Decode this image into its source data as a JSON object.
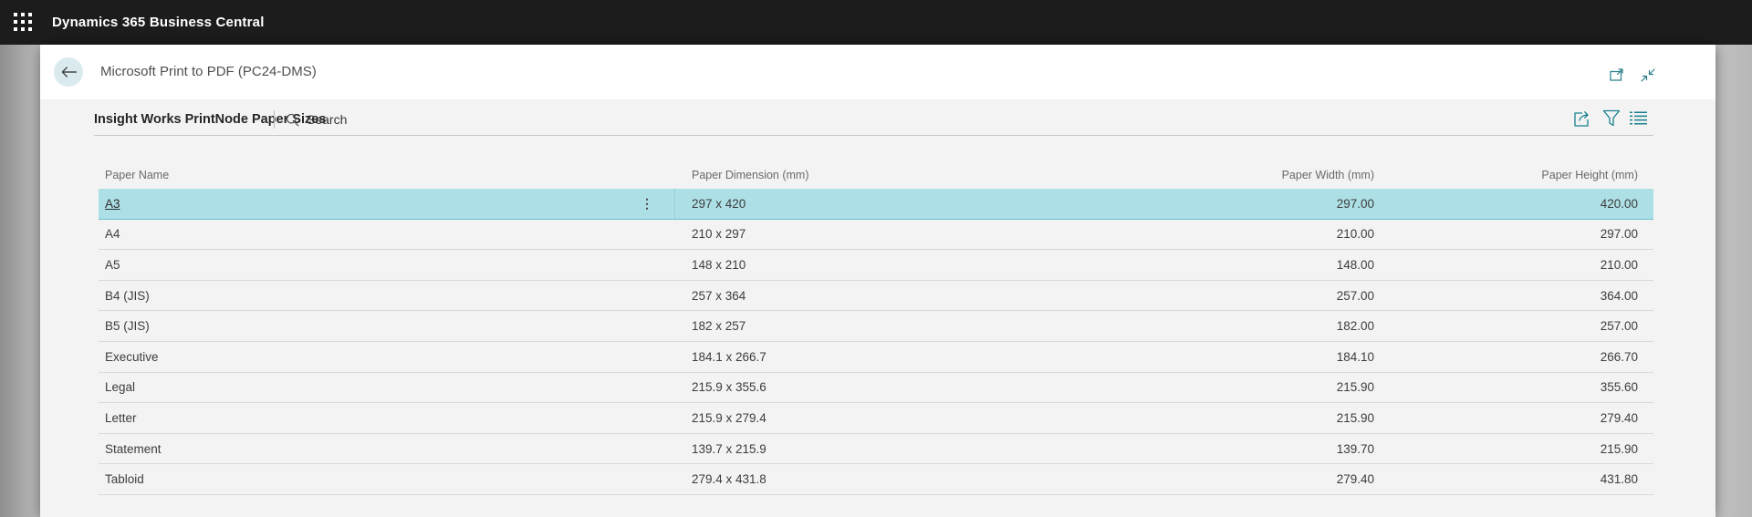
{
  "app": {
    "title": "Dynamics 365 Business Central"
  },
  "page": {
    "title": "Microsoft Print to PDF (PC24-DMS)",
    "list_caption": "Insight Works PrintNode Paper Sizes",
    "search_label": "Search"
  },
  "icons": {
    "waffle": "app-launcher grid of 9 dots",
    "back_arrow": "left arrow in circle",
    "popout": "open-in-new-window",
    "collapse": "collapse-to-normal-view arrows",
    "share": "share arrow out of box",
    "filter": "funnel",
    "show_list": "list lines",
    "search": "magnifier",
    "row_ellipsis": "⋮"
  },
  "colors": {
    "topbar": "#1c1c1c",
    "accent_teal": "#19808e",
    "selected_row": "#ade0e6",
    "panel": "#f3f3f3",
    "back_circle": "#d9ebee"
  },
  "table": {
    "columns": [
      {
        "label": "Paper Name",
        "align": "left"
      },
      {
        "label": "Paper Dimension (mm)",
        "align": "left"
      },
      {
        "label": "Paper Width (mm)",
        "align": "right"
      },
      {
        "label": "Paper Height (mm)",
        "align": "right"
      }
    ],
    "rows": [
      {
        "name": "A3",
        "dimension": "297 x 420",
        "width": "297.00",
        "height": "420.00",
        "selected": true
      },
      {
        "name": "A4",
        "dimension": "210 x 297",
        "width": "210.00",
        "height": "297.00",
        "selected": false
      },
      {
        "name": "A5",
        "dimension": "148 x 210",
        "width": "148.00",
        "height": "210.00",
        "selected": false
      },
      {
        "name": "B4 (JIS)",
        "dimension": "257 x 364",
        "width": "257.00",
        "height": "364.00",
        "selected": false
      },
      {
        "name": "B5 (JIS)",
        "dimension": "182 x 257",
        "width": "182.00",
        "height": "257.00",
        "selected": false
      },
      {
        "name": "Executive",
        "dimension": "184.1 x 266.7",
        "width": "184.10",
        "height": "266.70",
        "selected": false
      },
      {
        "name": "Legal",
        "dimension": "215.9 x 355.6",
        "width": "215.90",
        "height": "355.60",
        "selected": false
      },
      {
        "name": "Letter",
        "dimension": "215.9 x 279.4",
        "width": "215.90",
        "height": "279.40",
        "selected": false
      },
      {
        "name": "Statement",
        "dimension": "139.7 x 215.9",
        "width": "139.70",
        "height": "215.90",
        "selected": false
      },
      {
        "name": "Tabloid",
        "dimension": "279.4 x 431.8",
        "width": "279.40",
        "height": "431.80",
        "selected": false
      }
    ]
  }
}
